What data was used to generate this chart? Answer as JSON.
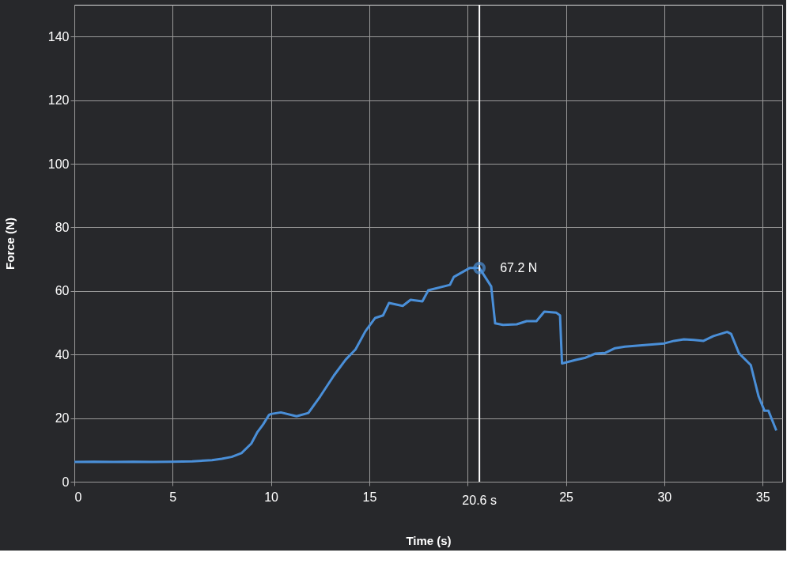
{
  "chart_data": {
    "type": "line",
    "xlabel": "Time (s)",
    "ylabel": "Force  (N)",
    "xlim": [
      0,
      36
    ],
    "xticks": [
      0,
      5,
      10,
      15,
      {
        "value": 20,
        "label": null
      },
      25,
      30,
      35
    ],
    "ylim": [
      0,
      150
    ],
    "yticks": [
      0,
      20,
      40,
      60,
      80,
      100,
      120,
      140
    ],
    "grid": true,
    "marker": "none",
    "line_style": "solid",
    "ref_lines": [
      {
        "axis": "x",
        "value": 20.6,
        "label": "20.6 s",
        "color": "#ffffff"
      }
    ],
    "annotations": [
      {
        "text": "67.2 N",
        "x": 20.6,
        "y": 67.2
      }
    ],
    "x": [
      0,
      1,
      2,
      3,
      4,
      5,
      6,
      7,
      7.5,
      8,
      8.5,
      9,
      9.3,
      9.6,
      9.9,
      10.0,
      10.5,
      11.3,
      11.9,
      12.5,
      13.2,
      13.8,
      14.3,
      14.8,
      15.3,
      15.7,
      16.0,
      16.7,
      17.1,
      17.7,
      18.0,
      19.1,
      19.3,
      20.1,
      20.6,
      21.2,
      21.4,
      21.8,
      22.5,
      23.0,
      23.5,
      23.9,
      24.5,
      24.7,
      24.8,
      25.5,
      26,
      26.5,
      27,
      27.5,
      28,
      29,
      30,
      30.5,
      31,
      31.5,
      32,
      32.5,
      33.2,
      33.4,
      33.8,
      34.4,
      34.8,
      35.1,
      35.3,
      35.7
    ],
    "series": [
      {
        "color": "#4a8fd8",
        "values": [
          6.2,
          6.3,
          6.2,
          6.3,
          6.2,
          6.3,
          6.4,
          6.8,
          7.2,
          7.8,
          9,
          12,
          15.5,
          18,
          21,
          21.3,
          21.8,
          20.6,
          21.6,
          26.8,
          33.4,
          38.4,
          41.6,
          47.3,
          51.5,
          52.3,
          56.2,
          55.3,
          57.2,
          56.7,
          60.2,
          61.9,
          64.4,
          67.2,
          67.2,
          61.4,
          49.8,
          49.3,
          49.5,
          50.5,
          50.5,
          53.5,
          53.2,
          52.3,
          37.2,
          38.3,
          39,
          40.3,
          40.5,
          42,
          42.5,
          43,
          43.5,
          44.3,
          44.8,
          44.6,
          44.3,
          45.8,
          47.1,
          46.5,
          40.4,
          36.7,
          26.8,
          22.3,
          22.3,
          16.1
        ]
      }
    ]
  }
}
